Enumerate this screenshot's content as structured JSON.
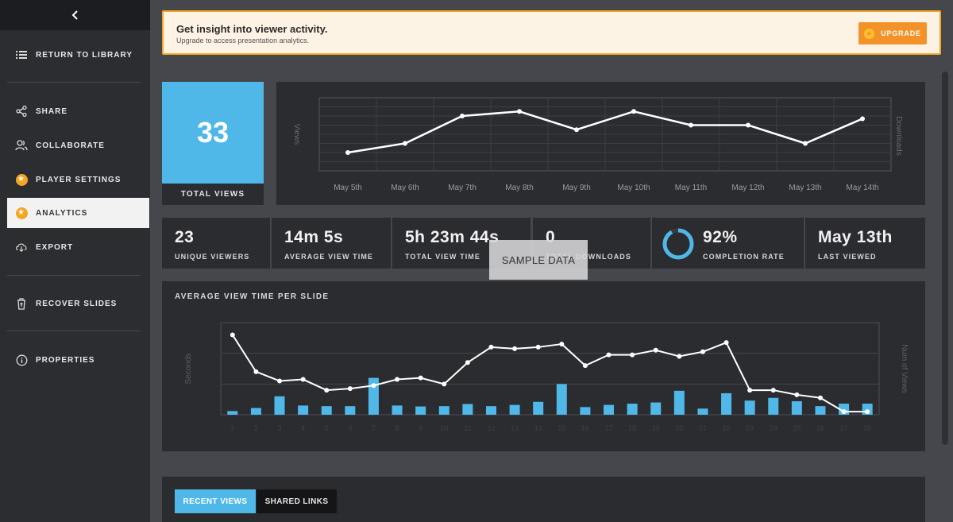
{
  "sidebar": {
    "back_icon": "chevron-left-icon",
    "items": [
      {
        "label": "RETURN TO LIBRARY",
        "icon": "list-icon"
      },
      {
        "label": "SHARE",
        "icon": "share-icon"
      },
      {
        "label": "COLLABORATE",
        "icon": "users-icon"
      },
      {
        "label": "PLAYER SETTINGS",
        "icon": "star-icon"
      },
      {
        "label": "ANALYTICS",
        "icon": "star-icon",
        "active": true
      },
      {
        "label": "EXPORT",
        "icon": "cloud-download-icon"
      },
      {
        "label": "RECOVER SLIDES",
        "icon": "trash-icon"
      },
      {
        "label": "PROPERTIES",
        "icon": "info-icon"
      }
    ]
  },
  "banner": {
    "title": "Get insight into viewer activity.",
    "subtitle": "Upgrade to access presentation analytics.",
    "button_label": "UPGRADE"
  },
  "total_views": {
    "value": "33",
    "label": "TOTAL VIEWS"
  },
  "stats": [
    {
      "value": "23",
      "caption": "UNIQUE VIEWERS"
    },
    {
      "value": "14m 5s",
      "caption": "AVERAGE VIEW TIME"
    },
    {
      "value": "5h 23m 44s",
      "caption": "TOTAL VIEW TIME"
    },
    {
      "value": "0",
      "caption": "TOTAL DOWNLOADS"
    },
    {
      "value": "92%",
      "caption": "COMPLETION RATE",
      "ring_fraction": 0.92
    },
    {
      "value": "May 13th",
      "caption": "LAST VIEWED"
    }
  ],
  "sample_label": "SAMPLE DATA",
  "per_slide": {
    "title": "AVERAGE VIEW TIME PER SLIDE"
  },
  "tabs": [
    {
      "label": "RECENT VIEWS",
      "active": true
    },
    {
      "label": "SHARED LINKS",
      "active": false
    }
  ],
  "colors": {
    "accent": "#4fb8e8",
    "orange": "#f4922a",
    "panel": "#2b2c30"
  },
  "chart_data": [
    {
      "type": "line",
      "categories": [
        "May 5th",
        "May 6th",
        "May 7th",
        "May 8th",
        "May 9th",
        "May 10th",
        "May 11th",
        "May 12th",
        "May 13th",
        "May 14th"
      ],
      "series": [
        {
          "values": [
            2,
            3,
            6,
            6.5,
            4.5,
            6.5,
            5,
            5,
            3,
            5.7
          ]
        }
      ],
      "ylabel": "Views",
      "ylabel_right": "Downloads",
      "ylim": [
        0,
        8
      ],
      "grid": true
    },
    {
      "type": "bar",
      "x": [
        1,
        2,
        3,
        4,
        5,
        6,
        7,
        8,
        9,
        10,
        11,
        12,
        13,
        14,
        15,
        16,
        17,
        18,
        19,
        20,
        21,
        22,
        23,
        24,
        25,
        26,
        27,
        28
      ],
      "series": [
        {
          "type": "line",
          "values": [
            2.6,
            1.4,
            1.1,
            1.15,
            0.8,
            0.85,
            0.95,
            1.15,
            1.2,
            1.0,
            1.7,
            2.2,
            2.15,
            2.2,
            2.3,
            1.6,
            1.95,
            1.95,
            2.1,
            1.9,
            2.05,
            2.35,
            0.8,
            0.8,
            0.65,
            0.55,
            0.1,
            0.1
          ]
        },
        {
          "type": "bar",
          "values": [
            0.12,
            0.22,
            0.6,
            0.3,
            0.28,
            0.28,
            1.2,
            0.3,
            0.27,
            0.28,
            0.35,
            0.28,
            0.32,
            0.42,
            1.0,
            0.25,
            0.32,
            0.36,
            0.4,
            0.78,
            0.2,
            0.7,
            0.46,
            0.55,
            0.44,
            0.28,
            0.36,
            0.36
          ]
        }
      ],
      "ylabel": "Seconds",
      "ylabel_right": "Num of Views",
      "ylim": [
        0,
        3
      ],
      "grid": true
    }
  ]
}
